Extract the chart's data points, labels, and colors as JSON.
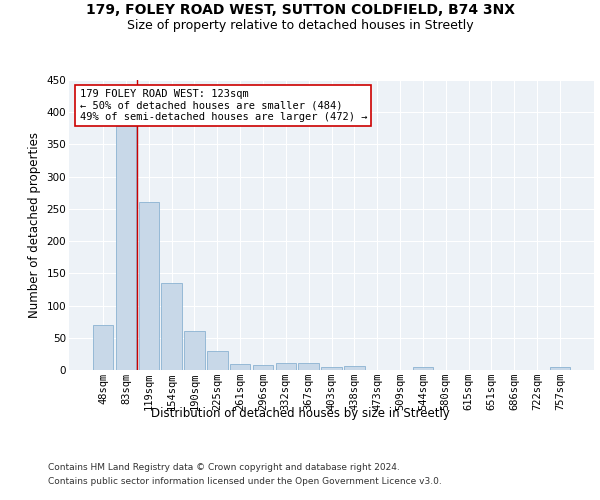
{
  "title_line1": "179, FOLEY ROAD WEST, SUTTON COLDFIELD, B74 3NX",
  "title_line2": "Size of property relative to detached houses in Streetly",
  "xlabel": "Distribution of detached houses by size in Streetly",
  "ylabel": "Number of detached properties",
  "categories": [
    "48sqm",
    "83sqm",
    "119sqm",
    "154sqm",
    "190sqm",
    "225sqm",
    "261sqm",
    "296sqm",
    "332sqm",
    "367sqm",
    "403sqm",
    "438sqm",
    "473sqm",
    "509sqm",
    "544sqm",
    "580sqm",
    "615sqm",
    "651sqm",
    "686sqm",
    "722sqm",
    "757sqm"
  ],
  "values": [
    70,
    378,
    260,
    135,
    60,
    30,
    10,
    8,
    11,
    11,
    5,
    6,
    0,
    0,
    5,
    0,
    0,
    0,
    0,
    0,
    5
  ],
  "bar_color": "#c8d8e8",
  "bar_edge_color": "#7aa8cc",
  "property_line_x": 1.5,
  "annotation_text": "179 FOLEY ROAD WEST: 123sqm\n← 50% of detached houses are smaller (484)\n49% of semi-detached houses are larger (472) →",
  "annotation_box_color": "#ffffff",
  "annotation_box_edge_color": "#cc0000",
  "vline_color": "#cc0000",
  "ylim": [
    0,
    450
  ],
  "yticks": [
    0,
    50,
    100,
    150,
    200,
    250,
    300,
    350,
    400,
    450
  ],
  "background_color": "#edf2f7",
  "grid_color": "#ffffff",
  "fig_background_color": "#ffffff",
  "footer_line1": "Contains HM Land Registry data © Crown copyright and database right 2024.",
  "footer_line2": "Contains public sector information licensed under the Open Government Licence v3.0.",
  "title_fontsize": 10,
  "subtitle_fontsize": 9,
  "axis_label_fontsize": 8.5,
  "tick_fontsize": 7.5,
  "annotation_fontsize": 7.5,
  "footer_fontsize": 6.5
}
